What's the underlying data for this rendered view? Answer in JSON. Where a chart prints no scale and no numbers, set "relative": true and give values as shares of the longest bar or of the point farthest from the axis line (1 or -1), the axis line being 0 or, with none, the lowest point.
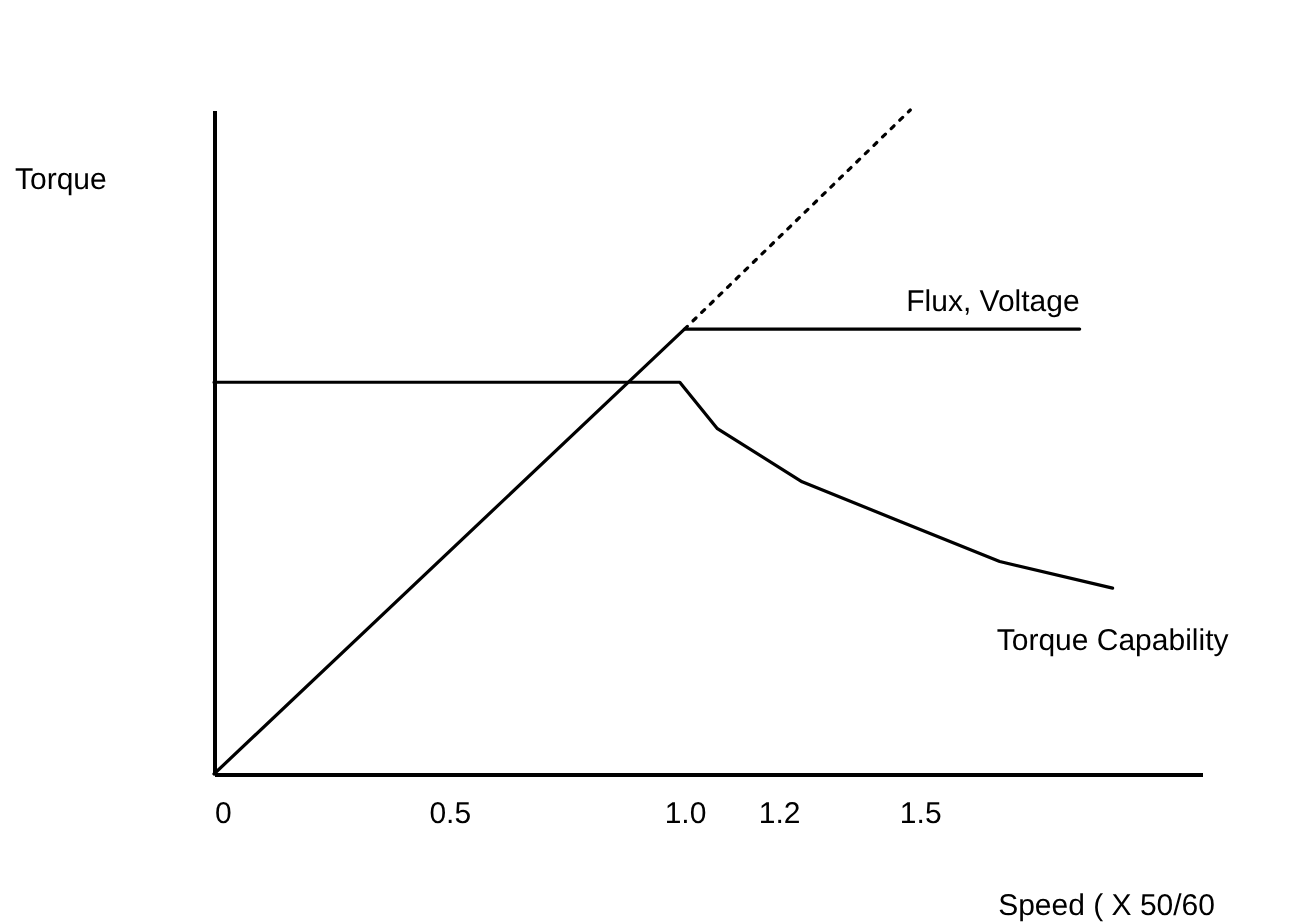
{
  "chart_data": {
    "type": "line",
    "relative": true,
    "xlabel": "Speed ( X 50/60",
    "ylabel": "Torque",
    "xlim": [
      0,
      2.1
    ],
    "xticks": [
      0,
      0.5,
      {
        "value": 1,
        "label": "1.0"
      },
      1.2,
      1.5
    ],
    "marker": "none",
    "series": [
      {
        "name": "Flux, Voltage",
        "color": "#000000",
        "x": [
          0,
          1.0,
          1.84
        ],
        "values": [
          0,
          0.67,
          0.67
        ],
        "line_style": "solid"
      },
      {
        "color": "#000000",
        "x": [
          1.0,
          1.48
        ],
        "values": [
          0.67,
          1
        ],
        "line_style": "dotted"
      },
      {
        "name": "Torque Capability",
        "color": "#000000",
        "x": [
          0,
          0.99,
          1.07,
          1.25,
          1.46,
          1.67,
          1.91
        ],
        "values": [
          0.59,
          0.59,
          0.52,
          0.44,
          0.38,
          0.32,
          0.28
        ],
        "line_style": "solid"
      }
    ]
  }
}
